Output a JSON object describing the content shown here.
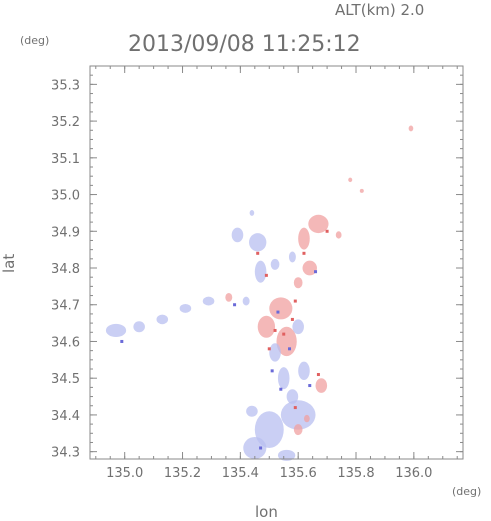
{
  "header": {
    "altitude": "ALT(km) 2.0",
    "timestamp": "2013/09/08 11:25:12"
  },
  "colors": {
    "axis": "#8a8a8a",
    "text": "#707070",
    "positive": "#f0a0a0",
    "negative": "#b8bff0",
    "strong_positive": "#e06060",
    "strong_negative": "#6a6ad8"
  },
  "chart_data": {
    "type": "heatmap",
    "title": "2013/09/08 11:25:12",
    "xlabel": "lon",
    "ylabel": "lat",
    "xunit": "(deg)",
    "yunit": "(deg)",
    "xlim": [
      134.88,
      136.17
    ],
    "ylim": [
      34.28,
      35.35
    ],
    "xticks": [
      135.0,
      135.2,
      135.4,
      135.6,
      135.8,
      136.0
    ],
    "xtick_labels": [
      "135.0",
      "135.2",
      "135.4",
      "135.6",
      "135.8",
      "136.0"
    ],
    "yticks": [
      34.3,
      34.4,
      34.5,
      34.6,
      34.7,
      34.8,
      34.9,
      35.0,
      35.1,
      35.2,
      35.3
    ],
    "ytick_labels": [
      "34.3",
      "34.4",
      "34.5",
      "34.6",
      "34.7",
      "34.8",
      "34.9",
      "35.0",
      "35.1",
      "35.2",
      "35.3"
    ],
    "grid": false,
    "regions": [
      {
        "lon": 135.99,
        "lat": 35.18,
        "rx": 0.008,
        "ry": 0.008,
        "sign": "pos"
      },
      {
        "lon": 135.67,
        "lat": 34.92,
        "rx": 0.035,
        "ry": 0.025,
        "sign": "pos"
      },
      {
        "lon": 135.62,
        "lat": 34.88,
        "rx": 0.02,
        "ry": 0.03,
        "sign": "pos"
      },
      {
        "lon": 135.64,
        "lat": 34.8,
        "rx": 0.025,
        "ry": 0.02,
        "sign": "pos"
      },
      {
        "lon": 135.6,
        "lat": 34.76,
        "rx": 0.015,
        "ry": 0.015,
        "sign": "pos"
      },
      {
        "lon": 135.74,
        "lat": 34.89,
        "rx": 0.01,
        "ry": 0.01,
        "sign": "pos"
      },
      {
        "lon": 135.78,
        "lat": 35.04,
        "rx": 0.006,
        "ry": 0.006,
        "sign": "pos"
      },
      {
        "lon": 135.82,
        "lat": 35.01,
        "rx": 0.005,
        "ry": 0.005,
        "sign": "pos"
      },
      {
        "lon": 135.46,
        "lat": 34.87,
        "rx": 0.03,
        "ry": 0.025,
        "sign": "neg"
      },
      {
        "lon": 135.39,
        "lat": 34.89,
        "rx": 0.02,
        "ry": 0.02,
        "sign": "neg"
      },
      {
        "lon": 135.47,
        "lat": 34.79,
        "rx": 0.02,
        "ry": 0.03,
        "sign": "neg"
      },
      {
        "lon": 135.52,
        "lat": 34.81,
        "rx": 0.015,
        "ry": 0.015,
        "sign": "neg"
      },
      {
        "lon": 135.58,
        "lat": 34.83,
        "rx": 0.012,
        "ry": 0.015,
        "sign": "neg"
      },
      {
        "lon": 135.44,
        "lat": 34.95,
        "rx": 0.008,
        "ry": 0.008,
        "sign": "neg"
      },
      {
        "lon": 134.97,
        "lat": 34.63,
        "rx": 0.035,
        "ry": 0.018,
        "sign": "neg"
      },
      {
        "lon": 135.05,
        "lat": 34.64,
        "rx": 0.02,
        "ry": 0.015,
        "sign": "neg"
      },
      {
        "lon": 135.13,
        "lat": 34.66,
        "rx": 0.02,
        "ry": 0.013,
        "sign": "neg"
      },
      {
        "lon": 135.21,
        "lat": 34.69,
        "rx": 0.02,
        "ry": 0.012,
        "sign": "neg"
      },
      {
        "lon": 135.29,
        "lat": 34.71,
        "rx": 0.02,
        "ry": 0.012,
        "sign": "neg"
      },
      {
        "lon": 135.36,
        "lat": 34.72,
        "rx": 0.012,
        "ry": 0.012,
        "sign": "pos"
      },
      {
        "lon": 135.42,
        "lat": 34.71,
        "rx": 0.012,
        "ry": 0.012,
        "sign": "neg"
      },
      {
        "lon": 135.54,
        "lat": 34.69,
        "rx": 0.04,
        "ry": 0.03,
        "sign": "pos"
      },
      {
        "lon": 135.49,
        "lat": 34.64,
        "rx": 0.03,
        "ry": 0.03,
        "sign": "pos"
      },
      {
        "lon": 135.56,
        "lat": 34.6,
        "rx": 0.035,
        "ry": 0.04,
        "sign": "pos"
      },
      {
        "lon": 135.52,
        "lat": 34.57,
        "rx": 0.02,
        "ry": 0.025,
        "sign": "neg"
      },
      {
        "lon": 135.6,
        "lat": 34.64,
        "rx": 0.02,
        "ry": 0.02,
        "sign": "neg"
      },
      {
        "lon": 135.55,
        "lat": 34.5,
        "rx": 0.02,
        "ry": 0.03,
        "sign": "neg"
      },
      {
        "lon": 135.62,
        "lat": 34.52,
        "rx": 0.02,
        "ry": 0.025,
        "sign": "neg"
      },
      {
        "lon": 135.68,
        "lat": 34.48,
        "rx": 0.02,
        "ry": 0.02,
        "sign": "pos"
      },
      {
        "lon": 135.58,
        "lat": 34.45,
        "rx": 0.02,
        "ry": 0.02,
        "sign": "neg"
      },
      {
        "lon": 135.6,
        "lat": 34.4,
        "rx": 0.06,
        "ry": 0.04,
        "sign": "neg"
      },
      {
        "lon": 135.5,
        "lat": 34.36,
        "rx": 0.05,
        "ry": 0.05,
        "sign": "neg"
      },
      {
        "lon": 135.45,
        "lat": 34.31,
        "rx": 0.04,
        "ry": 0.03,
        "sign": "neg"
      },
      {
        "lon": 135.44,
        "lat": 34.41,
        "rx": 0.02,
        "ry": 0.015,
        "sign": "neg"
      },
      {
        "lon": 135.56,
        "lat": 34.29,
        "rx": 0.03,
        "ry": 0.015,
        "sign": "neg"
      },
      {
        "lon": 135.6,
        "lat": 34.36,
        "rx": 0.015,
        "ry": 0.015,
        "sign": "pos"
      },
      {
        "lon": 135.63,
        "lat": 34.39,
        "rx": 0.01,
        "ry": 0.01,
        "sign": "pos"
      }
    ],
    "specks": [
      {
        "lon": 134.99,
        "lat": 34.6,
        "sign": "neg"
      },
      {
        "lon": 135.38,
        "lat": 34.7,
        "sign": "neg"
      },
      {
        "lon": 135.52,
        "lat": 34.63,
        "sign": "pos"
      },
      {
        "lon": 135.55,
        "lat": 34.62,
        "sign": "pos"
      },
      {
        "lon": 135.58,
        "lat": 34.66,
        "sign": "pos"
      },
      {
        "lon": 135.5,
        "lat": 34.58,
        "sign": "pos"
      },
      {
        "lon": 135.57,
        "lat": 34.58,
        "sign": "neg"
      },
      {
        "lon": 135.53,
        "lat": 34.68,
        "sign": "neg"
      },
      {
        "lon": 135.59,
        "lat": 34.71,
        "sign": "pos"
      },
      {
        "lon": 135.51,
        "lat": 34.52,
        "sign": "neg"
      },
      {
        "lon": 135.49,
        "lat": 34.78,
        "sign": "pos"
      },
      {
        "lon": 135.46,
        "lat": 34.84,
        "sign": "pos"
      },
      {
        "lon": 135.62,
        "lat": 34.84,
        "sign": "pos"
      },
      {
        "lon": 135.66,
        "lat": 34.79,
        "sign": "neg"
      },
      {
        "lon": 135.64,
        "lat": 34.48,
        "sign": "neg"
      },
      {
        "lon": 135.67,
        "lat": 34.51,
        "sign": "pos"
      },
      {
        "lon": 135.59,
        "lat": 34.42,
        "sign": "pos"
      },
      {
        "lon": 135.54,
        "lat": 34.47,
        "sign": "neg"
      },
      {
        "lon": 135.47,
        "lat": 34.31,
        "sign": "neg"
      },
      {
        "lon": 135.7,
        "lat": 34.9,
        "sign": "pos"
      }
    ]
  }
}
